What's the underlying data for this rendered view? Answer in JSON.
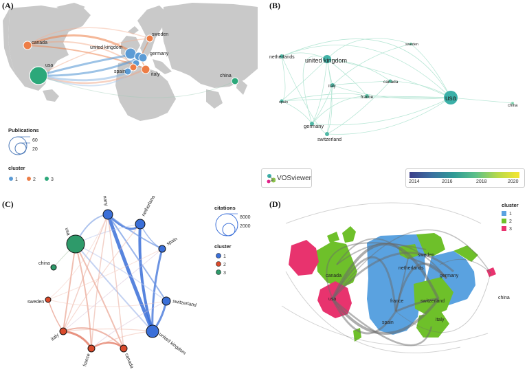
{
  "panels": {
    "A": {
      "tag": "(A)",
      "nodes": [
        {
          "id": "canada",
          "label": "canada",
          "cluster": 2
        },
        {
          "id": "usa",
          "label": "usa",
          "cluster": 1
        },
        {
          "id": "united_kingdom",
          "label": "united kingdom",
          "cluster": 1
        },
        {
          "id": "sweden",
          "label": "sweden",
          "cluster": 2
        },
        {
          "id": "germany",
          "label": "germany",
          "cluster": 1
        },
        {
          "id": "spain",
          "label": "spain",
          "cluster": 1
        },
        {
          "id": "italy",
          "label": "italy",
          "cluster": 2
        },
        {
          "id": "china",
          "label": "china",
          "cluster": 3
        }
      ],
      "size_legend": {
        "title": "Publications",
        "values": [
          "60",
          "20"
        ]
      },
      "cluster_legend": {
        "title": "cluster",
        "items": [
          {
            "label": "1",
            "color": "#5b9bd5"
          },
          {
            "label": "2",
            "color": "#ed7d46"
          },
          {
            "label": "3",
            "color": "#2ca87a"
          }
        ]
      }
    },
    "B": {
      "tag": "(B)",
      "nodes": [
        {
          "id": "netherlands",
          "label": "netherlands"
        },
        {
          "id": "united_kingdom",
          "label": "united kingdom"
        },
        {
          "id": "sweden",
          "label": "sweden"
        },
        {
          "id": "italy",
          "label": "italy"
        },
        {
          "id": "canada",
          "label": "canada"
        },
        {
          "id": "france",
          "label": "france"
        },
        {
          "id": "usa",
          "label": "usa"
        },
        {
          "id": "spain",
          "label": "spain"
        },
        {
          "id": "china",
          "label": "china"
        },
        {
          "id": "germany",
          "label": "germany"
        },
        {
          "id": "switzerland",
          "label": "switzerland"
        }
      ],
      "colorbar": {
        "ticks": [
          "2014",
          "2016",
          "2018",
          "2020"
        ]
      },
      "brand": "VOSviewer"
    },
    "C": {
      "tag": "(C)",
      "nodes": [
        {
          "id": "usa",
          "label": "usa",
          "cluster": 3
        },
        {
          "id": "germany",
          "label": "germany",
          "cluster": 1
        },
        {
          "id": "netherlands",
          "label": "netherlands",
          "cluster": 1
        },
        {
          "id": "spain",
          "label": "spain",
          "cluster": 1
        },
        {
          "id": "switzerland",
          "label": "switzerland",
          "cluster": 1
        },
        {
          "id": "united_kingdom",
          "label": "united kingdom",
          "cluster": 1
        },
        {
          "id": "canada",
          "label": "canada",
          "cluster": 2
        },
        {
          "id": "france",
          "label": "france",
          "cluster": 2
        },
        {
          "id": "italy",
          "label": "italy",
          "cluster": 2
        },
        {
          "id": "sweden",
          "label": "sweden",
          "cluster": 2
        },
        {
          "id": "china",
          "label": "china",
          "cluster": 3
        }
      ],
      "size_legend": {
        "title": "citations",
        "values": [
          "8000",
          "2000"
        ]
      },
      "cluster_legend": {
        "title": "cluster",
        "items": [
          {
            "label": "1",
            "color": "#3a6fd8"
          },
          {
            "label": "2",
            "color": "#d94a2b"
          },
          {
            "label": "3",
            "color": "#2e9a6a"
          }
        ]
      }
    },
    "D": {
      "tag": "(D)",
      "labels": [
        "canada",
        "usa",
        "sweden",
        "netherlands",
        "germany",
        "france",
        "switzerland",
        "spain",
        "italy",
        "china"
      ],
      "cluster_legend": {
        "title": "cluster",
        "items": [
          {
            "label": "1",
            "color": "#5aa2e0"
          },
          {
            "label": "2",
            "color": "#6ec02a"
          },
          {
            "label": "3",
            "color": "#e8336e"
          }
        ]
      }
    }
  }
}
